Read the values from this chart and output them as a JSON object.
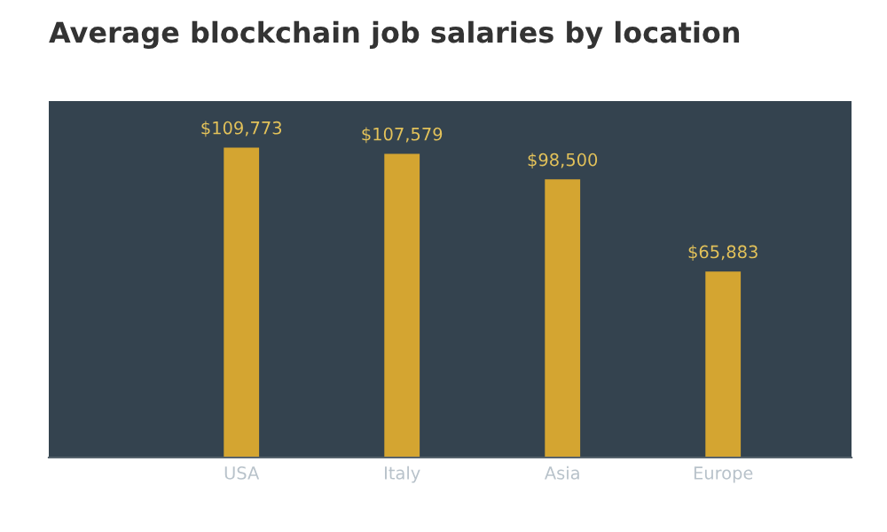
{
  "chart_data": {
    "type": "bar",
    "title": "Average blockchain job salaries by location",
    "categories": [
      "USA",
      "Italy",
      "Asia",
      "Europe"
    ],
    "values": [
      109773,
      107579,
      98500,
      65883
    ],
    "value_labels": [
      "$109,773",
      "$107,579",
      "$98,500",
      "$65,883"
    ],
    "color": "#d4a531",
    "grid": false
  }
}
